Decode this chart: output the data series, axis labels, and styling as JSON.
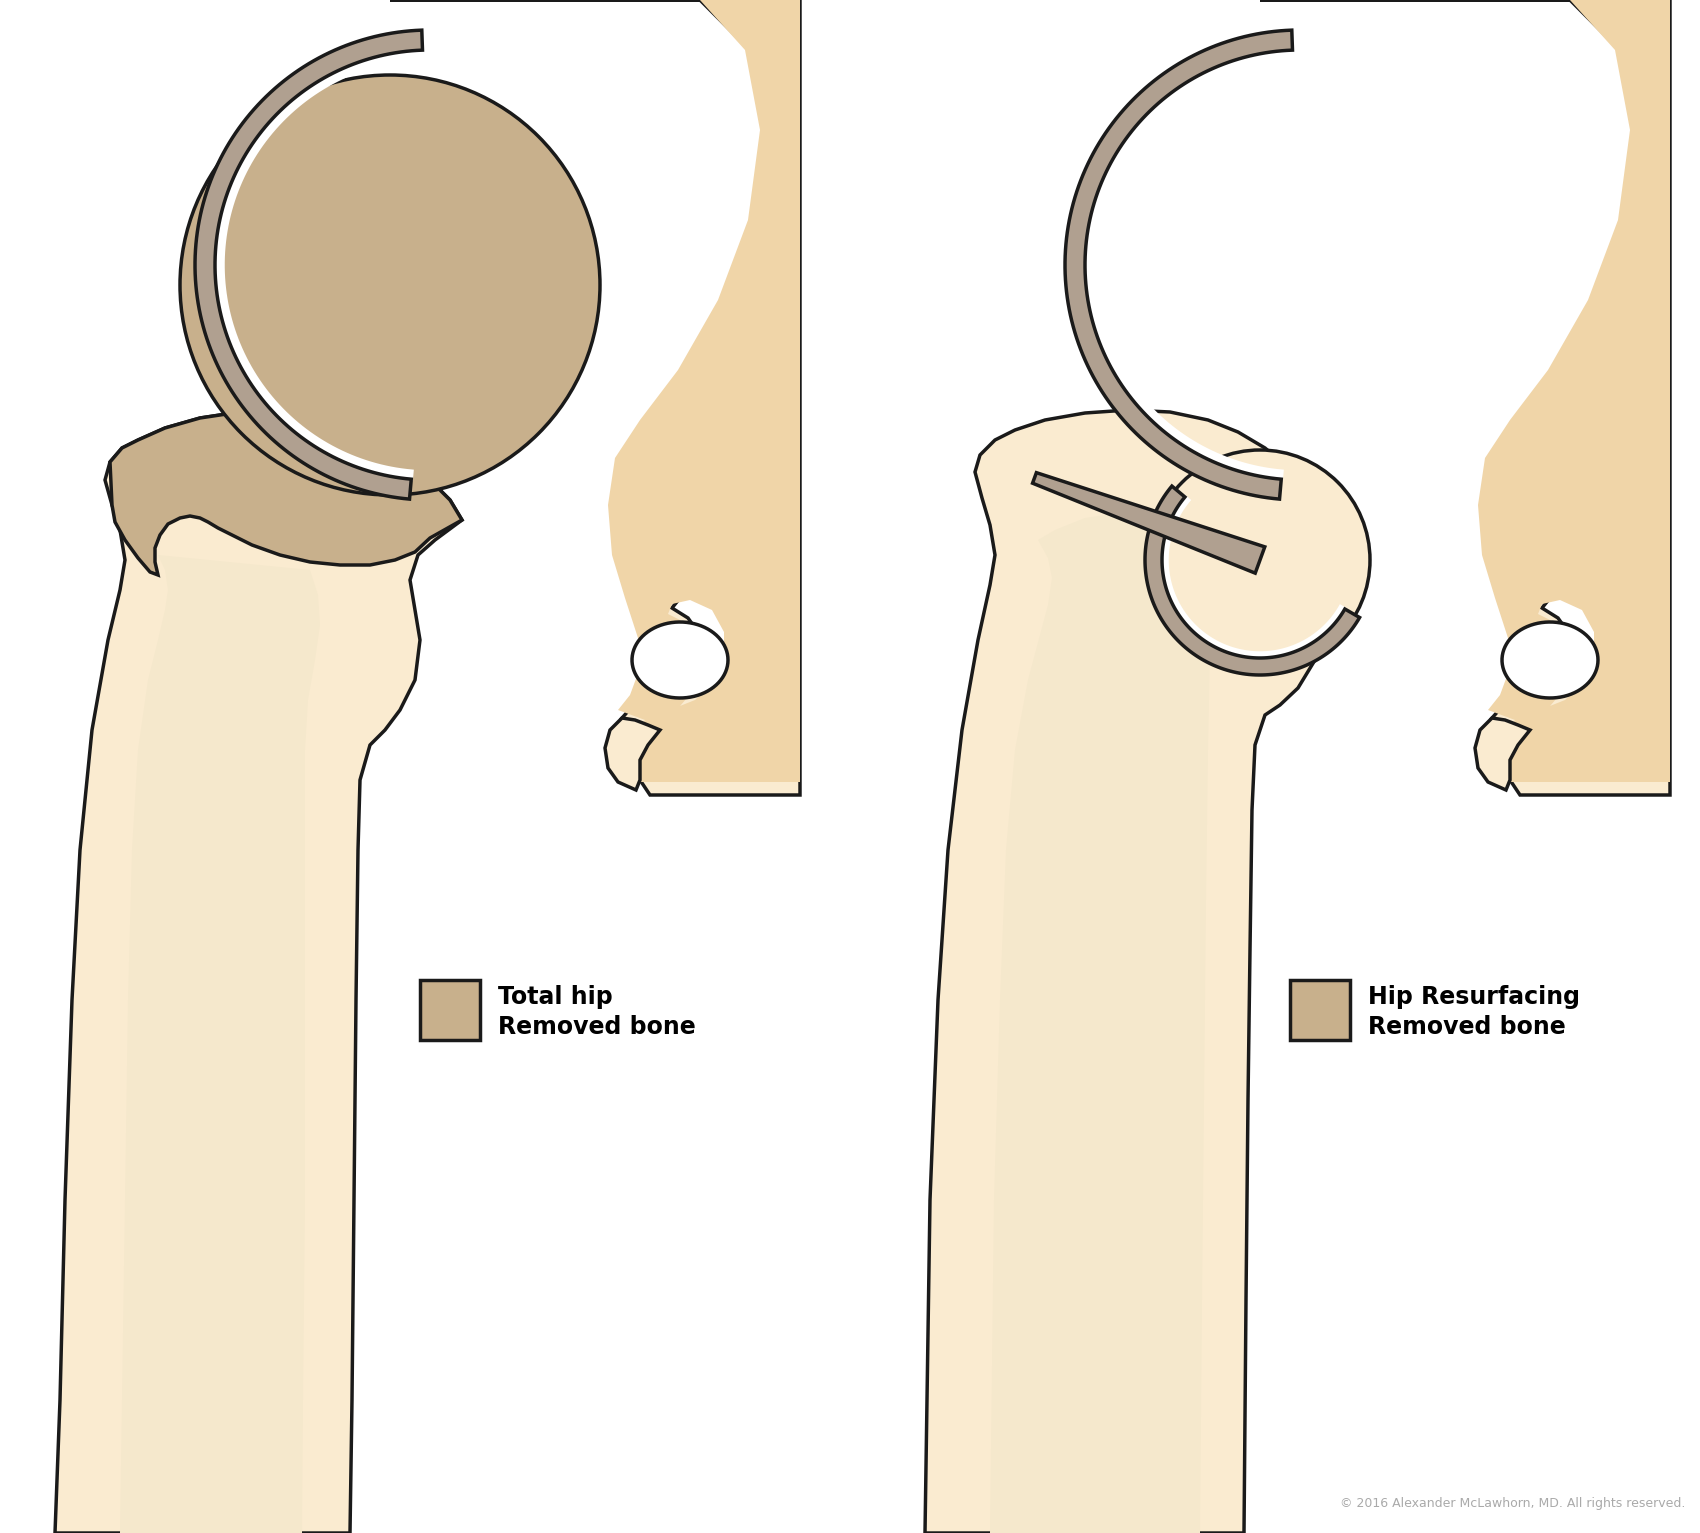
{
  "bg": "#ffffff",
  "bone_light": "#FAEBD0",
  "bone_med": "#F0D5A8",
  "removed": "#C8B08C",
  "metal": "#B0A090",
  "outline": "#1a1a1a",
  "lw": 2.5,
  "legend_left": [
    "Removed bone",
    "Total hip"
  ],
  "legend_right": [
    "Removed bone",
    "Hip Resurfacing"
  ],
  "copyright": "© 2016 Alexander McLawhorn, MD. All rights reserved.",
  "copy_color": "#aaaaaa"
}
